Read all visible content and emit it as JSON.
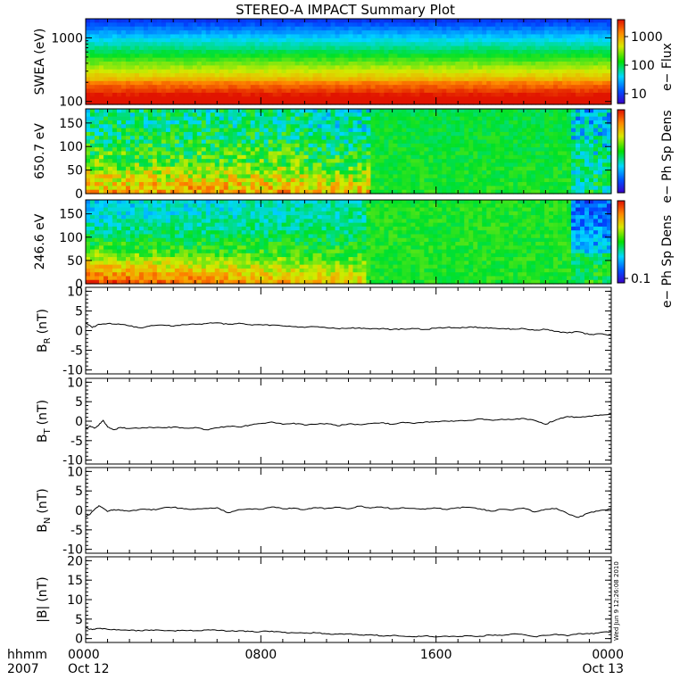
{
  "title": "STEREO-A IMPACT Summary Plot",
  "time_axis": {
    "row1_label": "hhmm",
    "row2_label": "2007",
    "ticks": [
      {
        "t": 0,
        "time": "0000",
        "date": "Oct 12"
      },
      {
        "t": 8,
        "time": "0800",
        "date": ""
      },
      {
        "t": 16,
        "time": "1600",
        "date": ""
      },
      {
        "t": 24,
        "time": "0000",
        "date": "Oct 13"
      }
    ]
  },
  "stamp": "Wed Jun  9 12:26:08 2010",
  "chart_data": [
    {
      "type": "heatmap",
      "ylabel": "SWEA (eV)",
      "yscale": "log",
      "ylim": [
        90,
        2000
      ],
      "yticks": [
        100,
        1000
      ],
      "ytick_labels": [
        "100",
        "1000"
      ],
      "colorbar": {
        "label": "e− Flux",
        "scale": "log",
        "ticks": [
          "10",
          "100",
          "1000"
        ]
      }
    },
    {
      "type": "heatmap",
      "ylabel": "650.7 eV",
      "ylim": [
        0,
        180
      ],
      "yticks": [
        0,
        50,
        100,
        150
      ],
      "colorbar": {
        "label": "e− Ph Sp Dens",
        "ticks": []
      }
    },
    {
      "type": "heatmap",
      "ylabel": "246.6 eV",
      "ylim": [
        0,
        180
      ],
      "yticks": [
        0,
        50,
        100,
        150
      ],
      "colorbar": {
        "label": "e− Ph Sp Dens",
        "ticks": [
          "0.1"
        ]
      }
    },
    {
      "type": "line",
      "ylabel": "B",
      "ylabel_sub": "R",
      "ylabel_unit": "(nT)",
      "ylim": [
        -11,
        11
      ],
      "yticks": [
        -10,
        -5,
        0,
        5,
        10
      ],
      "x": [
        0,
        0.3,
        0.6,
        1,
        1.5,
        2,
        2.5,
        3,
        3.5,
        4,
        4.5,
        5,
        5.5,
        6,
        6.5,
        7,
        7.5,
        8,
        8.5,
        9,
        9.5,
        10,
        10.5,
        11,
        11.5,
        12,
        12.5,
        13,
        13.5,
        14,
        14.5,
        15,
        15.5,
        16,
        16.5,
        17,
        17.5,
        18,
        18.5,
        19,
        19.5,
        20,
        20.5,
        21,
        21.5,
        22,
        22.5,
        23,
        23.5,
        24
      ],
      "y": [
        2,
        0.8,
        1.6,
        1.8,
        1.7,
        1.2,
        0.7,
        1.3,
        1.4,
        1.1,
        1.5,
        1.6,
        1.8,
        2,
        1.6,
        1.9,
        1.5,
        1.5,
        1.4,
        1.2,
        1,
        0.8,
        1,
        0.7,
        0.5,
        0.6,
        0.7,
        0.4,
        0.5,
        0.3,
        0.4,
        0.5,
        0.3,
        0.6,
        0.8,
        0.7,
        0.9,
        0.8,
        0.7,
        0.5,
        0.4,
        0.5,
        0.1,
        0.3,
        -0.2,
        -0.6,
        -0.3,
        -1,
        -0.8,
        -1.2
      ]
    },
    {
      "type": "line",
      "ylabel": "B",
      "ylabel_sub": "T",
      "ylabel_unit": "(nT)",
      "ylim": [
        -11,
        11
      ],
      "yticks": [
        -10,
        -5,
        0,
        5,
        10
      ],
      "x": [
        0,
        0.2,
        0.4,
        0.6,
        0.8,
        1,
        1.3,
        1.6,
        2,
        2.5,
        3,
        3.5,
        4,
        4.5,
        5,
        5.5,
        6,
        6.5,
        7,
        7.5,
        8,
        8.5,
        9,
        9.5,
        10,
        10.5,
        11,
        11.5,
        12,
        12.5,
        13,
        13.5,
        14,
        14.5,
        15,
        15.5,
        16,
        16.5,
        17,
        17.5,
        18,
        18.5,
        19,
        19.5,
        20,
        20.5,
        21,
        21.5,
        22,
        22.5,
        23,
        23.5,
        24
      ],
      "y": [
        -2,
        -1.2,
        -1.8,
        -1,
        0.2,
        -1.5,
        -2.2,
        -1.6,
        -1.9,
        -1.8,
        -1.6,
        -1.7,
        -1.5,
        -1.8,
        -1.6,
        -2.2,
        -1.7,
        -1.3,
        -1.5,
        -1,
        -0.6,
        -0.2,
        -0.8,
        -0.5,
        -1,
        -0.8,
        -0.6,
        -1.2,
        -0.7,
        -0.9,
        -0.6,
        -0.4,
        -0.8,
        -0.3,
        -0.6,
        -0.2,
        -0.1,
        0,
        0.1,
        0.2,
        0.6,
        0.3,
        0.5,
        0.4,
        0.7,
        0.2,
        -0.8,
        0.4,
        1.2,
        1,
        1.3,
        1.6,
        1.8
      ]
    },
    {
      "type": "line",
      "ylabel": "B",
      "ylabel_sub": "N",
      "ylabel_unit": "(nT)",
      "ylim": [
        -11,
        11
      ],
      "yticks": [
        -10,
        -5,
        0,
        5,
        10
      ],
      "x": [
        0,
        0.2,
        0.4,
        0.6,
        0.8,
        1,
        1.3,
        1.6,
        2,
        2.5,
        3,
        3.5,
        4,
        4.5,
        5,
        5.5,
        6,
        6.5,
        7,
        7.5,
        8,
        8.5,
        9,
        9.5,
        10,
        10.5,
        11,
        11.5,
        12,
        12.5,
        13,
        13.5,
        14,
        14.5,
        15,
        15.5,
        16,
        16.5,
        17,
        17.5,
        18,
        18.5,
        19,
        19.5,
        20,
        20.5,
        21,
        21.5,
        22,
        22.5,
        23,
        23.5,
        24
      ],
      "y": [
        -1.5,
        -1,
        0.2,
        1.2,
        0.5,
        -0.3,
        0.2,
        0,
        -0.2,
        0.3,
        0.1,
        0.6,
        0.8,
        0.4,
        0.3,
        0.5,
        0.7,
        -0.6,
        0.2,
        0.4,
        0.3,
        0.9,
        0.4,
        0.6,
        0.2,
        0.7,
        0.5,
        0.8,
        0.4,
        1.1,
        0.6,
        0.9,
        0.4,
        0.7,
        0.5,
        0.3,
        0.6,
        0.2,
        0.7,
        0.8,
        0.4,
        -0.2,
        0.3,
        0.1,
        0.6,
        -0.4,
        0.3,
        0.5,
        -0.8,
        -1.8,
        -0.6,
        0,
        0.4
      ]
    },
    {
      "type": "line",
      "ylabel": "|B|",
      "ylabel_sub": "",
      "ylabel_unit": "(nT)",
      "ylim": [
        -1,
        21
      ],
      "yticks": [
        0,
        5,
        10,
        15,
        20
      ],
      "x": [
        0,
        0.3,
        0.6,
        1,
        1.5,
        2,
        2.5,
        3,
        3.5,
        4,
        4.5,
        5,
        5.5,
        6,
        6.5,
        7,
        7.5,
        8,
        8.5,
        9,
        9.5,
        10,
        10.5,
        11,
        11.5,
        12,
        12.5,
        13,
        13.5,
        14,
        14.5,
        15,
        15.5,
        16,
        16.5,
        17,
        17.5,
        18,
        18.5,
        19,
        19.5,
        20,
        20.5,
        21,
        21.5,
        22,
        22.5,
        23,
        23.5,
        24
      ],
      "y": [
        2.8,
        2.3,
        2.6,
        2.4,
        2.3,
        2.1,
        2,
        2.2,
        2.1,
        2,
        2.1,
        2,
        2.2,
        2.1,
        1.9,
        2,
        1.8,
        1.8,
        1.9,
        1.6,
        1.5,
        1.4,
        1.5,
        1.2,
        1.1,
        1.2,
        0.9,
        1,
        0.7,
        0.8,
        0.6,
        0.5,
        0.7,
        0.4,
        0.6,
        0.5,
        0.7,
        0.6,
        0.9,
        0.8,
        1.2,
        1,
        0.5,
        0.8,
        1.1,
        0.7,
        1.3,
        1.2,
        1.6,
        1.8
      ]
    }
  ]
}
